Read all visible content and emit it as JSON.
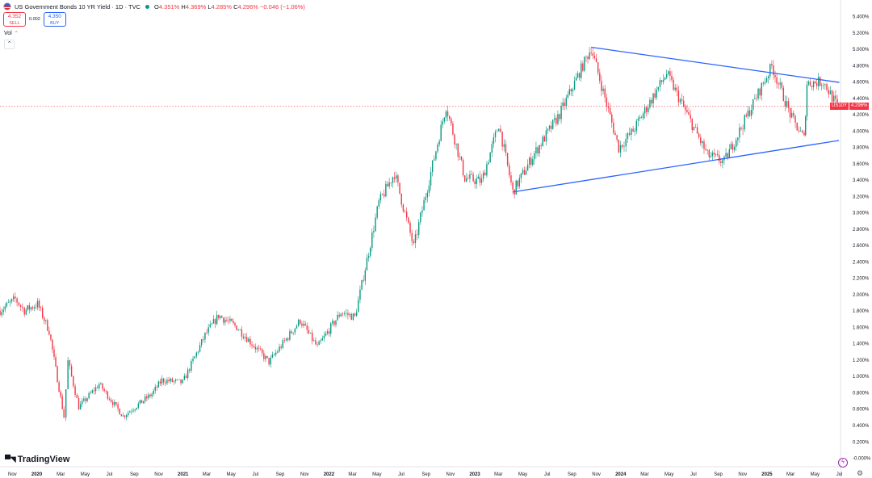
{
  "header": {
    "title": "US Government Bonds 10 YR Yield · 1D · TVC",
    "ohlc": {
      "o_label": "O",
      "o": "4.351%",
      "h_label": "H",
      "h": "4.369%",
      "l_label": "L",
      "l": "4.285%",
      "c_label": "C",
      "c": "4.296%",
      "change": "−0.046 (−1.06%)"
    }
  },
  "trade": {
    "sell_price": "4.352",
    "sell_label": "SELL",
    "spread": "0.002",
    "buy_price": "4.350",
    "buy_label": "BUY"
  },
  "volume_label": "Vol",
  "brand": "TradingView",
  "price_tags": {
    "symbol": "US10Y",
    "last": "4.296%"
  },
  "colors": {
    "up": "#089981",
    "down": "#f23645",
    "trendline": "#2962ff",
    "grid": "#f0f3fa"
  },
  "icons": [
    "us-flag-icon",
    "eye-icon",
    "chevron-up-icon",
    "tradingview-logo-icon",
    "lightning-icon",
    "gear-icon"
  ],
  "chart_data": {
    "type": "candlestick",
    "title": "US Government Bonds 10 YR Yield",
    "ylim": [
      0.2,
      5.4
    ],
    "y_ticks": [
      "5.400%",
      "5.200%",
      "5.000%",
      "4.800%",
      "4.600%",
      "4.400%",
      "4.200%",
      "4.000%",
      "3.800%",
      "3.600%",
      "3.400%",
      "3.200%",
      "3.000%",
      "2.800%",
      "2.600%",
      "2.400%",
      "2.200%",
      "2.000%",
      "1.800%",
      "1.600%",
      "1.400%",
      "1.200%",
      "1.000%",
      "0.800%",
      "0.600%",
      "0.400%",
      "0.200%",
      "-0.000%"
    ],
    "x_ticks": [
      "Nov",
      "2020",
      "Mar",
      "May",
      "Jul",
      "Sep",
      "Nov",
      "2021",
      "Mar",
      "May",
      "Jul",
      "Sep",
      "Nov",
      "2022",
      "Mar",
      "May",
      "Jul",
      "Sep",
      "Nov",
      "2023",
      "Mar",
      "May",
      "Jul",
      "Sep",
      "Nov",
      "2024",
      "Mar",
      "May",
      "Jul",
      "Sep",
      "Nov",
      "2025",
      "Mar",
      "May",
      "Jul"
    ],
    "bold_x_ticks": [
      "2020",
      "2021",
      "2022",
      "2023",
      "2024",
      "2025"
    ],
    "x_range": [
      "2019-10",
      "2025-07"
    ],
    "path": [
      [
        "2019-10-01",
        1.8
      ],
      [
        "2019-11-08",
        1.94
      ],
      [
        "2019-12-01",
        1.8
      ],
      [
        "2020-01-03",
        1.88
      ],
      [
        "2020-02-01",
        1.55
      ],
      [
        "2020-03-09",
        0.5
      ],
      [
        "2020-03-19",
        1.18
      ],
      [
        "2020-04-15",
        0.62
      ],
      [
        "2020-06-05",
        0.9
      ],
      [
        "2020-08-04",
        0.51
      ],
      [
        "2020-10-15",
        0.78
      ],
      [
        "2020-11-09",
        0.95
      ],
      [
        "2020-12-31",
        0.92
      ],
      [
        "2021-02-25",
        1.5
      ],
      [
        "2021-03-31",
        1.74
      ],
      [
        "2021-05-15",
        1.6
      ],
      [
        "2021-08-04",
        1.17
      ],
      [
        "2021-10-21",
        1.68
      ],
      [
        "2021-12-03",
        1.35
      ],
      [
        "2022-01-31",
        1.78
      ],
      [
        "2022-03-07",
        1.72
      ],
      [
        "2022-05-06",
        3.12
      ],
      [
        "2022-06-14",
        3.48
      ],
      [
        "2022-08-01",
        2.58
      ],
      [
        "2022-09-30",
        3.85
      ],
      [
        "2022-10-21",
        4.3
      ],
      [
        "2022-12-07",
        3.42
      ],
      [
        "2023-01-18",
        3.38
      ],
      [
        "2023-03-02",
        4.08
      ],
      [
        "2023-04-06",
        3.25
      ],
      [
        "2023-05-30",
        3.72
      ],
      [
        "2023-08-01",
        4.2
      ],
      [
        "2023-10-19",
        5.01
      ],
      [
        "2023-12-27",
        3.79
      ],
      [
        "2024-02-01",
        4.0
      ],
      [
        "2024-04-25",
        4.7
      ],
      [
        "2024-06-15",
        4.2
      ],
      [
        "2024-08-05",
        3.7
      ],
      [
        "2024-09-16",
        3.62
      ],
      [
        "2025-01-13",
        4.79
      ],
      [
        "2025-03-04",
        4.15
      ],
      [
        "2025-04-04",
        3.9
      ],
      [
        "2025-04-11",
        4.58
      ],
      [
        "2025-05-22",
        4.6
      ],
      [
        "2025-06-26",
        4.296
      ]
    ],
    "last_close": 4.296,
    "trendlines": [
      {
        "name": "upper",
        "from": [
          "2023-10-19",
          5.02
        ],
        "to": [
          "2025-07-01",
          4.59
        ]
      },
      {
        "name": "lower",
        "from": [
          "2023-04-06",
          3.25
        ],
        "to": [
          "2025-06-30",
          3.88
        ]
      }
    ],
    "grid": false,
    "price_line": true
  }
}
